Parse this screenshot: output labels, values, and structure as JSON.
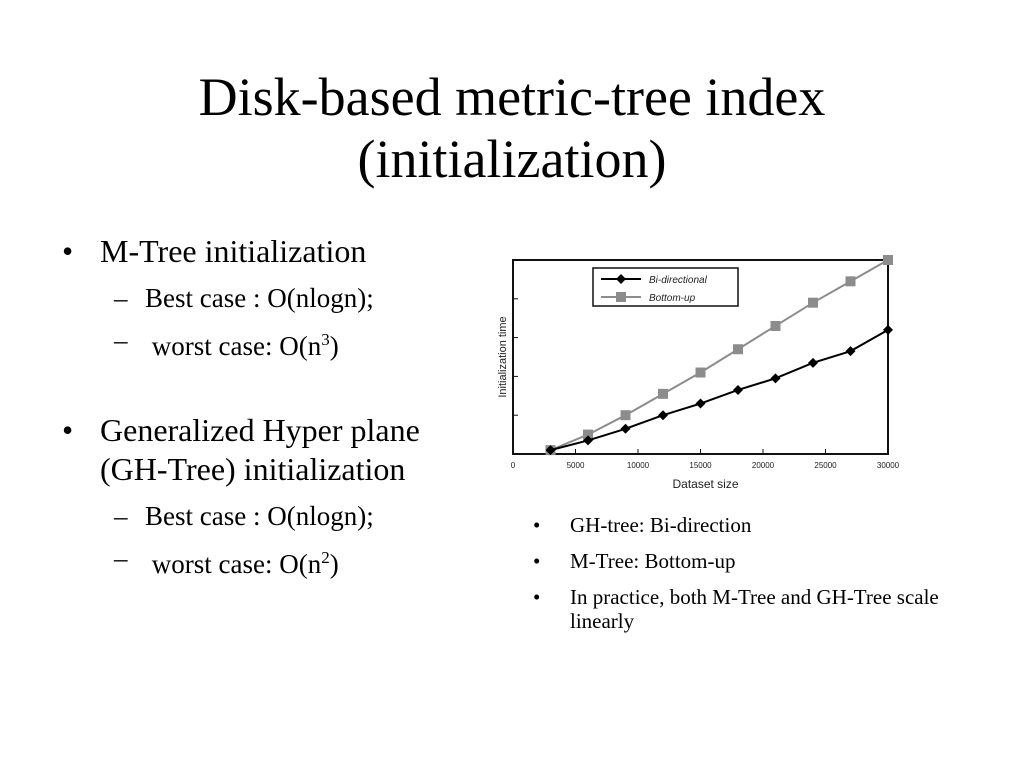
{
  "slide": {
    "title_line1": "Disk-based metric-tree index",
    "title_line2": "(initialization)"
  },
  "left": {
    "mtree_heading": "M-Tree initialization",
    "mtree_best": "Best case : O(nlogn);",
    "mtree_worst_prefix": "worst case:  O(n",
    "mtree_worst_exp": "3",
    "mtree_worst_suffix": ")",
    "gh_heading": "Generalized Hyper plane (GH-Tree) initialization",
    "gh_best": "Best case : O(nlogn);",
    "gh_worst_prefix": "worst case:  O(n",
    "gh_worst_exp": "2",
    "gh_worst_suffix": ")",
    "bullet_glyph": "•",
    "dash_glyph": "–"
  },
  "right": {
    "notes": [
      "GH-tree: Bi-direction",
      "M-Tree: Bottom-up",
      "In practice,  both M-Tree and GH-Tree scale linearly"
    ]
  },
  "chart_data": {
    "type": "line",
    "xlabel": "Dataset size",
    "ylabel": "Initialization time",
    "xlim": [
      0,
      30000
    ],
    "ylim": [
      0,
      1
    ],
    "x_ticks": [
      0,
      5000,
      10000,
      15000,
      20000,
      25000,
      30000
    ],
    "x_tick_labels": [
      "0",
      "5000",
      "10000",
      "15000",
      "20000",
      "25000",
      "30000"
    ],
    "y_ticks": [
      0,
      0.2,
      0.4,
      0.6,
      0.8,
      1.0
    ],
    "grid": false,
    "legend_position": "top-left",
    "series": [
      {
        "name": "Bi-directional",
        "marker": "diamond",
        "color": "#000000",
        "x": [
          3000,
          6000,
          9000,
          12000,
          15000,
          18000,
          21000,
          24000,
          27000,
          30000
        ],
        "y": [
          0.02,
          0.07,
          0.13,
          0.2,
          0.26,
          0.33,
          0.39,
          0.47,
          0.53,
          0.64
        ]
      },
      {
        "name": "Bottom-up",
        "marker": "square",
        "color": "#8c8c8c",
        "x": [
          3000,
          6000,
          9000,
          12000,
          15000,
          18000,
          21000,
          24000,
          27000,
          30000
        ],
        "y": [
          0.02,
          0.1,
          0.2,
          0.31,
          0.42,
          0.54,
          0.66,
          0.78,
          0.89,
          1.0
        ]
      }
    ]
  }
}
